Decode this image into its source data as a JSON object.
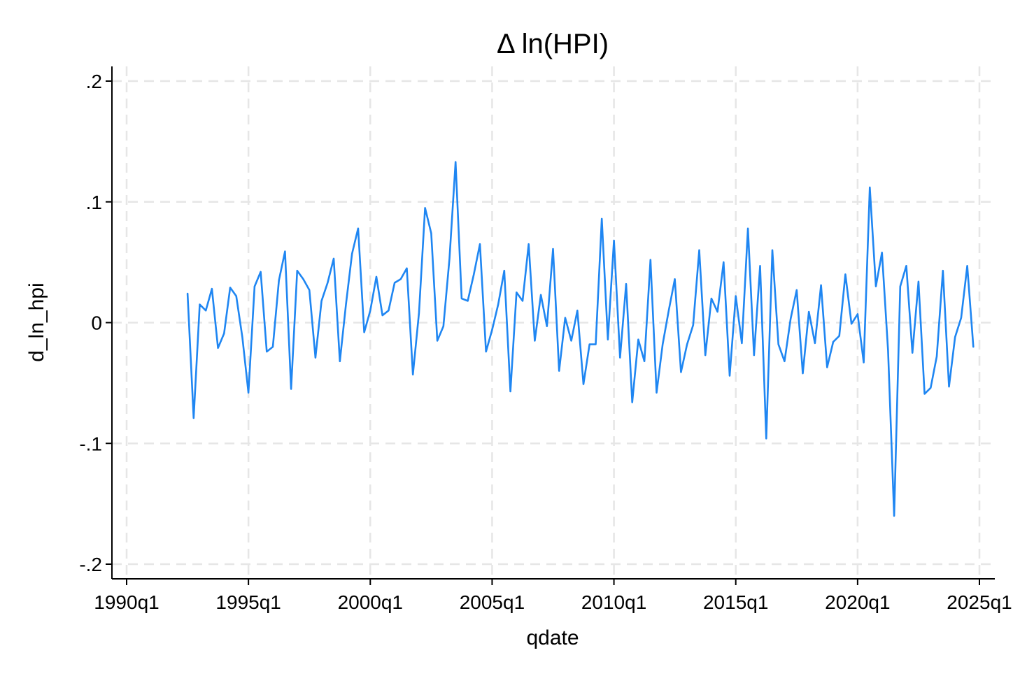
{
  "chart_data": {
    "type": "line",
    "title": "Δ ln(HPI)",
    "xlabel": "qdate",
    "ylabel": "d_ln_hpi",
    "xlim": [
      "1990q1",
      "2025q1"
    ],
    "ylim": [
      -0.2,
      0.2
    ],
    "grid": true,
    "legend": "none",
    "x_ticks": [
      "1990q1",
      "1995q1",
      "2000q1",
      "2005q1",
      "2010q1",
      "2015q1",
      "2020q1",
      "2025q1"
    ],
    "y_ticks": [
      {
        "value": -0.2,
        "label": "-.2"
      },
      {
        "value": -0.1,
        "label": "-.1"
      },
      {
        "value": 0,
        "label": "0"
      },
      {
        "value": 0.1,
        "label": ".1"
      },
      {
        "value": 0.2,
        "label": ".2"
      }
    ],
    "series": [
      {
        "color": "#1f86f2",
        "x": [
          "1992q3",
          "1992q4",
          "1993q1",
          "1993q2",
          "1993q3",
          "1993q4",
          "1994q1",
          "1994q2",
          "1994q3",
          "1994q4",
          "1995q1",
          "1995q2",
          "1995q3",
          "1995q4",
          "1996q1",
          "1996q2",
          "1996q3",
          "1996q4",
          "1997q1",
          "1997q2",
          "1997q3",
          "1997q4",
          "1998q1",
          "1998q2",
          "1998q3",
          "1998q4",
          "1999q1",
          "1999q2",
          "1999q3",
          "1999q4",
          "2000q1",
          "2000q2",
          "2000q3",
          "2000q4",
          "2001q1",
          "2001q2",
          "2001q3",
          "2001q4",
          "2002q1",
          "2002q2",
          "2002q3",
          "2002q4",
          "2003q1",
          "2003q2",
          "2003q3",
          "2003q4",
          "2004q1",
          "2004q2",
          "2004q3",
          "2004q4",
          "2005q1",
          "2005q2",
          "2005q3",
          "2005q4",
          "2006q1",
          "2006q2",
          "2006q3",
          "2006q4",
          "2007q1",
          "2007q2",
          "2007q3",
          "2007q4",
          "2008q1",
          "2008q2",
          "2008q3",
          "2008q4",
          "2009q1",
          "2009q2",
          "2009q3",
          "2009q4",
          "2010q1",
          "2010q2",
          "2010q3",
          "2010q4",
          "2011q1",
          "2011q2",
          "2011q3",
          "2011q4",
          "2012q1",
          "2012q2",
          "2012q3",
          "2012q4",
          "2013q1",
          "2013q2",
          "2013q3",
          "2013q4",
          "2014q1",
          "2014q2",
          "2014q3",
          "2014q4",
          "2015q1",
          "2015q2",
          "2015q3",
          "2015q4",
          "2016q1",
          "2016q2",
          "2016q3",
          "2016q4",
          "2017q1",
          "2017q2",
          "2017q3",
          "2017q4",
          "2018q1",
          "2018q2",
          "2018q3",
          "2018q4",
          "2019q1",
          "2019q2",
          "2019q3",
          "2019q4",
          "2020q1",
          "2020q2",
          "2020q3",
          "2020q4",
          "2021q1",
          "2021q2",
          "2021q3",
          "2021q4",
          "2022q1",
          "2022q2",
          "2022q3",
          "2022q4",
          "2023q1",
          "2023q2",
          "2023q3",
          "2023q4",
          "2024q1",
          "2024q2",
          "2024q3",
          "2024q4"
        ],
        "values": [
          0.024,
          -0.079,
          0.015,
          0.01,
          0.028,
          -0.021,
          -0.009,
          0.029,
          0.022,
          -0.012,
          -0.058,
          0.03,
          0.042,
          -0.024,
          -0.02,
          0.035,
          0.059,
          -0.055,
          0.043,
          0.036,
          0.027,
          -0.029,
          0.018,
          0.033,
          0.053,
          -0.032,
          0.015,
          0.057,
          0.078,
          -0.008,
          0.01,
          0.038,
          0.006,
          0.01,
          0.033,
          0.036,
          0.045,
          -0.043,
          0.008,
          0.095,
          0.074,
          -0.015,
          -0.003,
          0.053,
          0.133,
          0.02,
          0.018,
          0.04,
          0.065,
          -0.024,
          -0.006,
          0.015,
          0.043,
          -0.057,
          0.025,
          0.018,
          0.065,
          -0.015,
          0.023,
          -0.003,
          0.061,
          -0.04,
          0.004,
          -0.015,
          0.01,
          -0.051,
          -0.018,
          -0.018,
          0.086,
          -0.014,
          0.068,
          -0.029,
          0.032,
          -0.066,
          -0.014,
          -0.032,
          0.052,
          -0.058,
          -0.018,
          0.01,
          0.036,
          -0.041,
          -0.018,
          -0.002,
          0.06,
          -0.027,
          0.02,
          0.009,
          0.05,
          -0.044,
          0.022,
          -0.017,
          0.078,
          -0.027,
          0.047,
          -0.096,
          0.06,
          -0.018,
          -0.032,
          0.003,
          0.027,
          -0.042,
          0.009,
          -0.017,
          0.031,
          -0.037,
          -0.016,
          -0.011,
          0.04,
          -0.001,
          0.007,
          -0.033,
          0.112,
          0.03,
          0.058,
          -0.023,
          -0.16,
          0.03,
          0.047,
          -0.025,
          0.034,
          -0.059,
          -0.054,
          -0.028,
          0.043,
          -0.053,
          -0.012,
          0.004,
          0.047,
          -0.02
        ]
      }
    ]
  }
}
